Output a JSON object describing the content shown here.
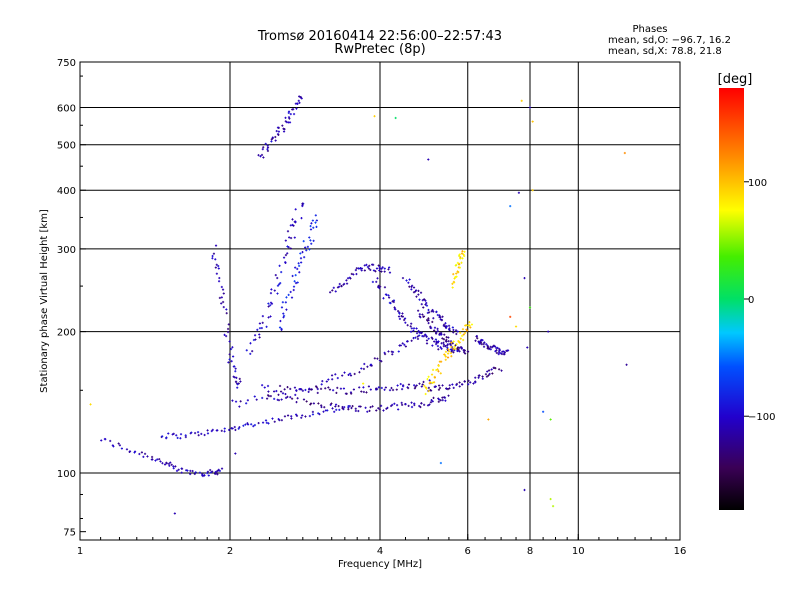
{
  "chart_data": {
    "type": "scatter",
    "title": "Tromsø 20160414 22:56:00–22:57:43",
    "subtitle": "RwPretec (8p)",
    "xlabel": "Frequency [MHz]",
    "ylabel": "Stationary phase Virtual Height [km]",
    "x_scale": "log",
    "y_scale": "log",
    "xlim": [
      1,
      16
    ],
    "ylim": [
      72,
      750
    ],
    "x_ticks": [
      1,
      2,
      4,
      6,
      8,
      10,
      16
    ],
    "x_tick_labels": [
      "1",
      "2",
      "4",
      "6",
      "8",
      "10",
      "16"
    ],
    "x_grid": [
      2,
      4,
      6,
      8,
      10
    ],
    "y_ticks": [
      75,
      100,
      200,
      300,
      400,
      500,
      600,
      750
    ],
    "y_tick_labels": [
      "75",
      "100",
      "200",
      "300",
      "400",
      "500",
      "600",
      "750"
    ],
    "y_grid": [
      100,
      200,
      300,
      400,
      500,
      600
    ],
    "grid": true,
    "stats": {
      "heading": "Phases",
      "line_o": "mean, sd,O: −96.7, 16.2",
      "line_x": "mean, sd,X:  78.8, 21.8"
    },
    "colorbar": {
      "label": "[deg]",
      "range": [
        -180,
        180
      ],
      "ticks": [
        100,
        0,
        -100
      ],
      "tick_labels": [
        "100",
        "0",
        "−100"
      ],
      "colormap": "rainbow"
    },
    "traces": [
      {
        "f": [
          1.1,
          1.25,
          1.4,
          1.5,
          1.6,
          1.75,
          1.85,
          1.92
        ],
        "h": [
          118,
          112,
          108,
          104,
          101,
          100,
          100,
          102
        ],
        "phase": -110,
        "spread": 0.03
      },
      {
        "f": [
          1.45,
          1.6,
          1.8,
          2.0,
          2.2,
          2.5,
          2.8,
          3.2,
          3.6
        ],
        "h": [
          120,
          120,
          122,
          124,
          127,
          130,
          133,
          136,
          138
        ],
        "phase": -105,
        "spread": 0.025
      },
      {
        "f": [
          2.4,
          2.8,
          3.2,
          3.6,
          4.0,
          4.4,
          4.8,
          5.2,
          5.5
        ],
        "h": [
          145,
          142,
          139,
          137,
          137,
          139,
          140,
          143,
          145
        ],
        "phase": -120,
        "spread": 0.03
      },
      {
        "f": [
          2.3,
          2.7,
          3.1,
          3.5,
          3.9,
          4.3,
          4.7,
          5.1
        ],
        "h": [
          152,
          151,
          150,
          150,
          151,
          152,
          153,
          155
        ],
        "phase": -115,
        "spread": 0.035
      },
      {
        "f": [
          2.0,
          2.4,
          2.8,
          3.2,
          3.6,
          4.0,
          4.4,
          4.8
        ],
        "h": [
          140,
          145,
          150,
          158,
          165,
          175,
          185,
          195
        ],
        "phase": -110,
        "spread": 0.04
      },
      {
        "f": [
          5.0,
          5.4,
          5.8,
          6.2,
          6.6,
          7.0
        ],
        "h": [
          150,
          152,
          155,
          158,
          163,
          168
        ],
        "phase": -120,
        "spread": 0.03
      },
      {
        "f": [
          3.9,
          4.1,
          4.3,
          4.5,
          4.7,
          4.9,
          5.1,
          5.3,
          5.5,
          5.7
        ],
        "h": [
          260,
          240,
          225,
          210,
          200,
          195,
          190,
          187,
          185,
          183
        ],
        "phase": -110,
        "spread": 0.04
      },
      {
        "f": [
          4.8,
          5.0,
          5.2,
          5.4,
          5.6,
          5.8,
          6.0
        ],
        "h": [
          220,
          210,
          200,
          193,
          187,
          183,
          180
        ],
        "phase": -120,
        "spread": 0.03
      },
      {
        "f": [
          6.2,
          6.4,
          6.6,
          6.8,
          7.0,
          7.2
        ],
        "h": [
          195,
          190,
          186,
          183,
          181,
          180
        ],
        "phase": -115,
        "spread": 0.03
      },
      {
        "f": [
          4.5,
          4.7,
          4.9,
          5.1,
          5.3,
          5.5,
          5.7
        ],
        "h": [
          260,
          245,
          230,
          220,
          212,
          205,
          200
        ],
        "phase": -110,
        "spread": 0.04
      },
      {
        "f": [
          3.2,
          3.4,
          3.6,
          3.8,
          4.0,
          4.2
        ],
        "h": [
          240,
          255,
          270,
          275,
          272,
          270
        ],
        "phase": -115,
        "spread": 0.03
      },
      {
        "f": [
          1.85,
          1.9,
          1.95,
          2.0,
          2.05,
          2.1
        ],
        "h": [
          300,
          260,
          220,
          180,
          160,
          150
        ],
        "phase": -110,
        "spread": 0.05
      },
      {
        "f": [
          2.2,
          2.3,
          2.4,
          2.5,
          2.6,
          2.7,
          2.8
        ],
        "h": [
          180,
          200,
          230,
          260,
          300,
          340,
          380
        ],
        "phase": -105,
        "spread": 0.06
      },
      {
        "f": [
          2.5,
          2.6,
          2.7,
          2.8,
          2.9,
          3.0
        ],
        "h": [
          200,
          230,
          260,
          290,
          320,
          360
        ],
        "phase": -85,
        "spread": 0.06
      },
      {
        "f": [
          2.3,
          2.4,
          2.5,
          2.6,
          2.7,
          2.8
        ],
        "h": [
          470,
          500,
          530,
          560,
          600,
          640
        ],
        "phase": -110,
        "spread": 0.04
      },
      {
        "f": [
          4.9,
          5.1,
          5.3,
          5.5,
          5.7,
          5.9,
          6.1
        ],
        "h": [
          150,
          160,
          170,
          180,
          190,
          200,
          210
        ],
        "phase": 95,
        "spread": 0.05
      },
      {
        "f": [
          5.6,
          5.7,
          5.8,
          5.9
        ],
        "h": [
          250,
          270,
          285,
          300
        ],
        "phase": 90,
        "spread": 0.03
      }
    ],
    "scatter_points": [
      {
        "f": 1.05,
        "h": 140,
        "phase": 90
      },
      {
        "f": 1.55,
        "h": 82,
        "phase": -110
      },
      {
        "f": 3.9,
        "h": 575,
        "phase": 95
      },
      {
        "f": 4.3,
        "h": 570,
        "phase": 0
      },
      {
        "f": 5.0,
        "h": 465,
        "phase": -110
      },
      {
        "f": 5.3,
        "h": 105,
        "phase": -50
      },
      {
        "f": 7.3,
        "h": 370,
        "phase": -50
      },
      {
        "f": 7.6,
        "h": 395,
        "phase": -110
      },
      {
        "f": 7.7,
        "h": 620,
        "phase": 95
      },
      {
        "f": 7.8,
        "h": 260,
        "phase": -110
      },
      {
        "f": 8.0,
        "h": 600,
        "phase": -110
      },
      {
        "f": 8.1,
        "h": 560,
        "phase": 100
      },
      {
        "f": 8.1,
        "h": 400,
        "phase": 95
      },
      {
        "f": 8.0,
        "h": 225,
        "phase": 30
      },
      {
        "f": 7.8,
        "h": 92,
        "phase": -110
      },
      {
        "f": 8.7,
        "h": 200,
        "phase": -110
      },
      {
        "f": 8.8,
        "h": 88,
        "phase": 60
      },
      {
        "f": 8.9,
        "h": 85,
        "phase": 60
      },
      {
        "f": 8.8,
        "h": 130,
        "phase": 40
      },
      {
        "f": 8.5,
        "h": 135,
        "phase": -60
      },
      {
        "f": 12.4,
        "h": 480,
        "phase": 120
      },
      {
        "f": 12.5,
        "h": 170,
        "phase": -120
      },
      {
        "f": 7.3,
        "h": 215,
        "phase": 150
      },
      {
        "f": 7.5,
        "h": 205,
        "phase": 90
      },
      {
        "f": 7.9,
        "h": 185,
        "phase": -110
      },
      {
        "f": 6.6,
        "h": 130,
        "phase": 110
      },
      {
        "f": 2.05,
        "h": 110,
        "phase": -110
      },
      {
        "f": 3.7,
        "h": 155,
        "phase": 80
      }
    ]
  }
}
